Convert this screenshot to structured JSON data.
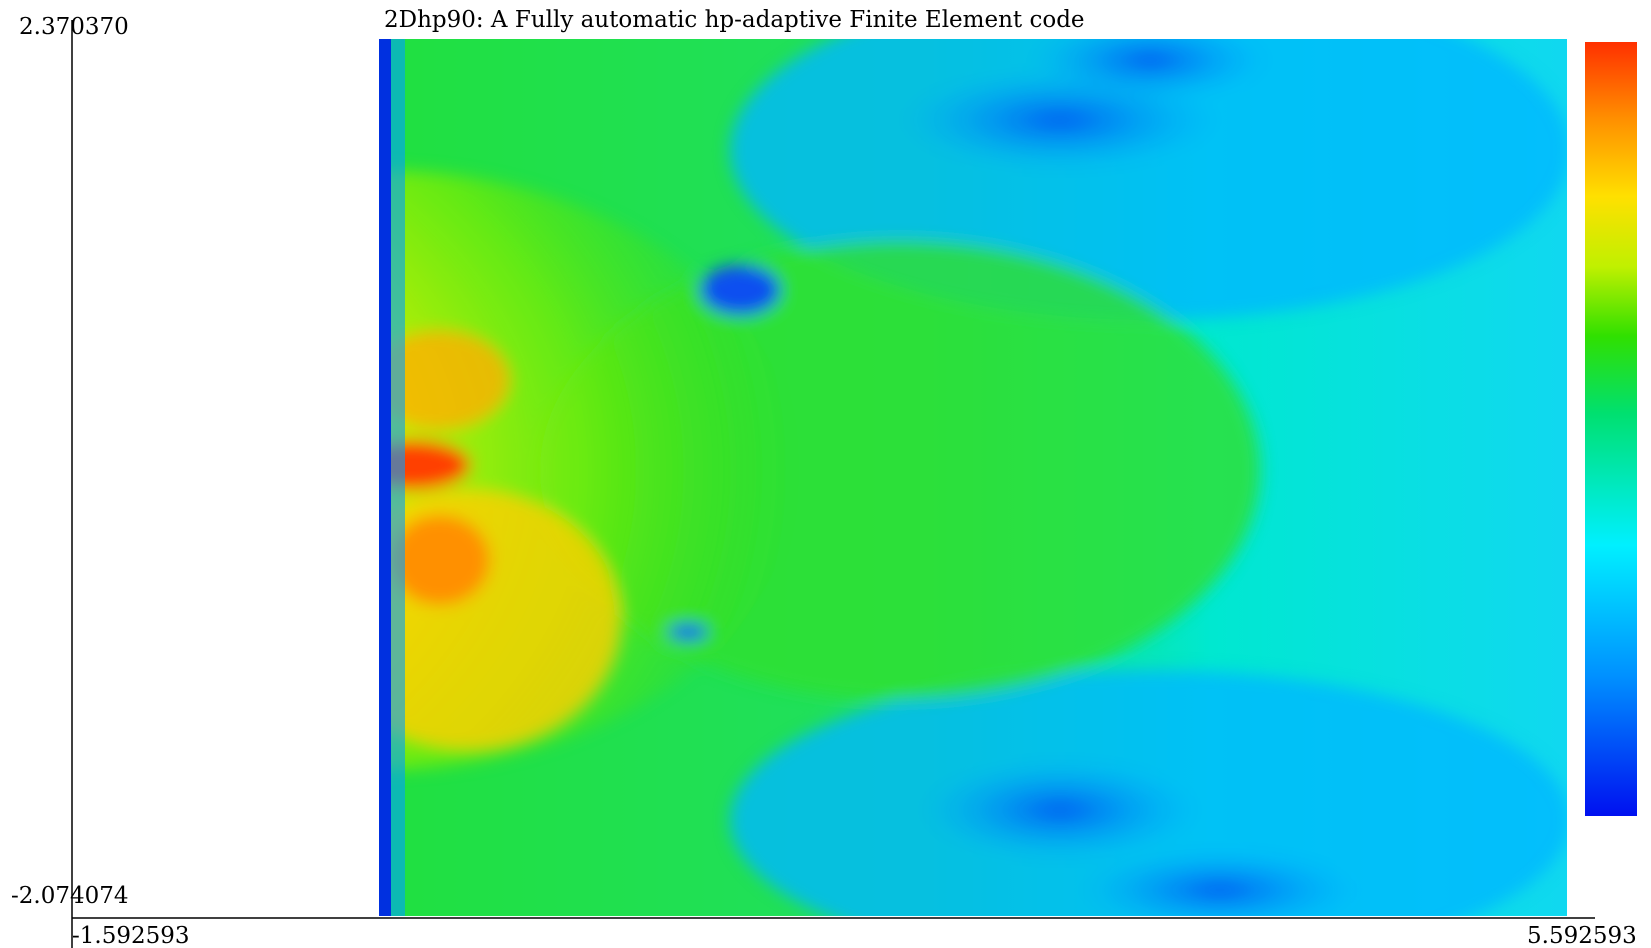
{
  "title": "2Dhp90: A Fully automatic hp-adaptive Finite Element code",
  "axes": {
    "y_max_label": "2.370370",
    "y_min_label": "-2.074074",
    "x_min_label": "-1.592593",
    "x_max_label": "5.592593"
  }
}
